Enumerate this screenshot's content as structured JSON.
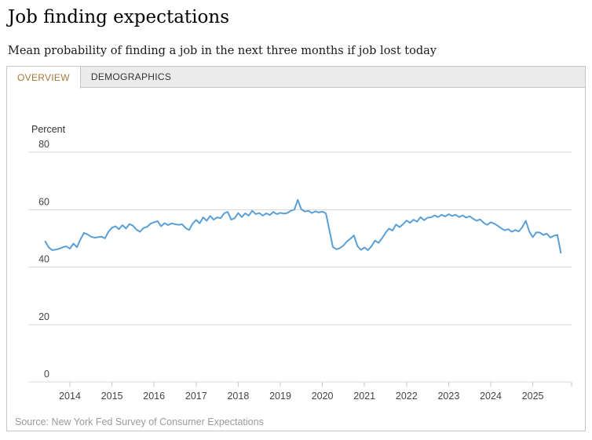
{
  "header": {
    "title": "Job finding expectations",
    "subtitle": "Mean probability of finding a job in the next three months if job lost today"
  },
  "tabs": [
    {
      "label": "OVERVIEW",
      "active": true
    },
    {
      "label": "DEMOGRAPHICS",
      "active": false
    }
  ],
  "chart": {
    "unit_label": "Percent"
  },
  "source": "Source: New York Fed Survey of Consumer Expectations",
  "colors": {
    "line": "#5aa0d7",
    "grid": "#d9d9d9",
    "tick": "#c9c9c9",
    "axis_label": "#444444",
    "active_tab_text": "#a5793a",
    "border": "#c6c6c6"
  },
  "chart_data": {
    "type": "line",
    "title": "Job finding expectations",
    "subtitle": "Mean probability of finding a job in the next three months if job lost today",
    "ylabel": "Percent",
    "ylim": [
      0,
      80
    ],
    "yticks": [
      0,
      20,
      40,
      60,
      80
    ],
    "xticks": [
      "2014",
      "2015",
      "2016",
      "2017",
      "2018",
      "2019",
      "2020",
      "2021",
      "2022",
      "2023",
      "2024",
      "2025"
    ],
    "grid": true,
    "legend": "none",
    "frequency": "monthly",
    "start": "2013-06",
    "end": "2025-09",
    "series": [
      {
        "name": "Mean probability of finding a job (percent)",
        "color": "#5aa0d7",
        "values": [
          48.9,
          46.8,
          45.9,
          46.1,
          46.4,
          46.9,
          47.2,
          46.4,
          48.2,
          46.9,
          49.6,
          51.9,
          51.4,
          50.6,
          50.2,
          50.4,
          50.6,
          50.0,
          52.3,
          53.7,
          54.2,
          53.2,
          54.6,
          53.4,
          55.0,
          54.4,
          53.0,
          52.3,
          53.6,
          54.0,
          55.1,
          55.6,
          56.0,
          54.2,
          55.3,
          54.6,
          55.2,
          54.9,
          54.7,
          54.9,
          53.6,
          52.9,
          55.1,
          56.4,
          55.2,
          57.3,
          56.1,
          57.8,
          56.5,
          57.3,
          57.0,
          58.7,
          59.2,
          56.5,
          57.0,
          58.8,
          57.4,
          58.7,
          57.9,
          59.6,
          58.4,
          58.8,
          57.9,
          58.7,
          58.1,
          59.2,
          58.4,
          58.9,
          58.6,
          58.8,
          59.6,
          60.0,
          63.4,
          60.1,
          59.3,
          59.6,
          58.8,
          59.4,
          59.0,
          59.3,
          58.7,
          52.9,
          47.0,
          46.2,
          46.6,
          47.5,
          48.9,
          49.9,
          51.0,
          47.3,
          46.0,
          46.8,
          45.9,
          47.2,
          49.2,
          48.4,
          50.0,
          51.9,
          53.4,
          52.7,
          54.8,
          53.9,
          54.9,
          56.2,
          55.4,
          56.5,
          55.8,
          57.4,
          56.3,
          57.2,
          57.3,
          58.0,
          57.4,
          58.2,
          57.6,
          58.4,
          57.8,
          58.2,
          57.4,
          58.0,
          57.2,
          57.7,
          56.8,
          56.1,
          56.6,
          55.4,
          54.7,
          55.6,
          55.1,
          54.4,
          53.5,
          52.8,
          53.2,
          52.3,
          52.9,
          52.4,
          53.9,
          56.1,
          52.4,
          50.4,
          52.1,
          52.0,
          51.2,
          51.6,
          50.3,
          50.9,
          51.2,
          45.0
        ]
      }
    ]
  }
}
